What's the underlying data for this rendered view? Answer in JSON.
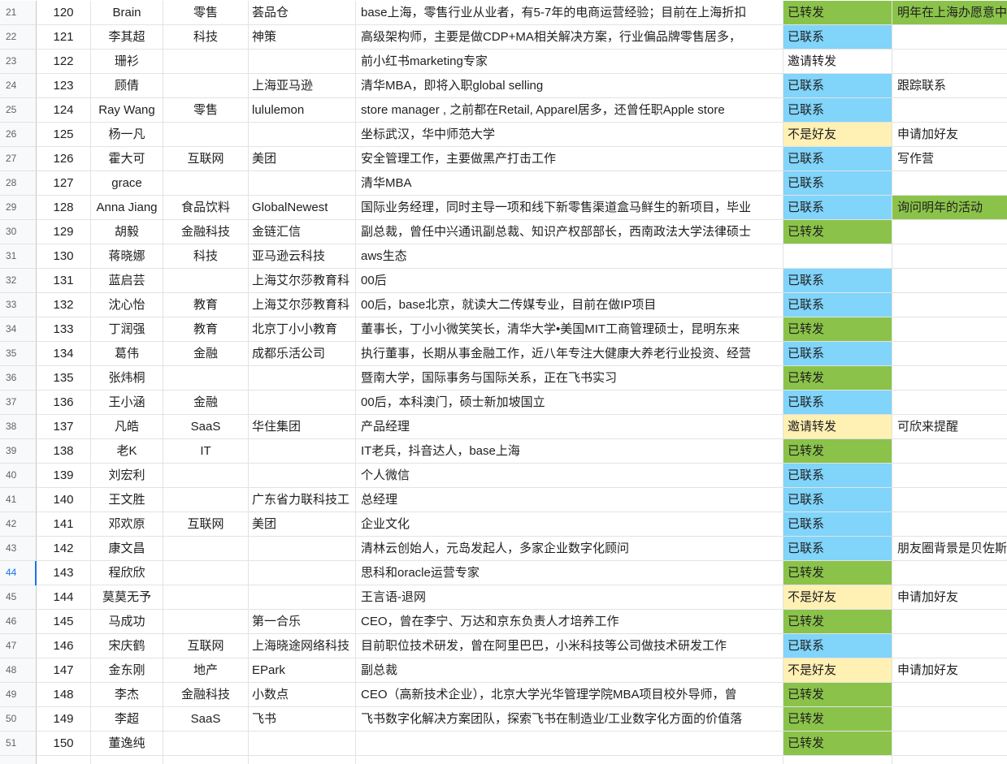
{
  "sheet": {
    "rows": [
      {
        "rn": "21",
        "id": "120",
        "name": "Brain",
        "industry": "零售",
        "company": "荟品仓",
        "desc": "base上海，零售行业从业者，有5-7年的电商运营经验；目前在上海折扣",
        "status": "已转发",
        "status_color": "green",
        "note": "明年在上海办愿意中",
        "note_color": "green"
      },
      {
        "rn": "22",
        "id": "121",
        "name": "李其超",
        "industry": "科技",
        "company": "神策",
        "desc": "高级架构师，主要是做CDP+MA相关解决方案，行业偏品牌零售居多，",
        "status": "已联系",
        "status_color": "blue",
        "note": "",
        "note_color": ""
      },
      {
        "rn": "23",
        "id": "122",
        "name": "珊衫",
        "industry": "",
        "company": "",
        "desc": "前小红书marketing专家",
        "status": "邀请转发",
        "status_color": "white",
        "note": "",
        "note_color": ""
      },
      {
        "rn": "24",
        "id": "123",
        "name": "顾倩",
        "industry": "",
        "company": "上海亚马逊",
        "desc": "清华MBA，即将入职global selling",
        "status": "已联系",
        "status_color": "blue",
        "note": "跟踪联系",
        "note_color": ""
      },
      {
        "rn": "25",
        "id": "124",
        "name": "Ray Wang",
        "industry": "零售",
        "company": "lululemon",
        "desc": "store manager , 之前都在Retail, Apparel居多，还曾任职Apple store",
        "status": "已联系",
        "status_color": "blue",
        "note": "",
        "note_color": ""
      },
      {
        "rn": "26",
        "id": "125",
        "name": "杨一凡",
        "industry": "",
        "company": "",
        "desc": "坐标武汉，华中师范大学",
        "status": "不是好友",
        "status_color": "yellow",
        "note": "申请加好友",
        "note_color": ""
      },
      {
        "rn": "27",
        "id": "126",
        "name": "霍大可",
        "industry": "互联网",
        "company": "美团",
        "desc": "安全管理工作，主要做黑产打击工作",
        "status": "已联系",
        "status_color": "blue",
        "note": "写作营",
        "note_color": ""
      },
      {
        "rn": "28",
        "id": "127",
        "name": "grace",
        "industry": "",
        "company": "",
        "desc": "清华MBA",
        "status": "已联系",
        "status_color": "blue",
        "note": "",
        "note_color": ""
      },
      {
        "rn": "29",
        "id": "128",
        "name": "Anna Jiang",
        "industry": "食品饮料",
        "company": "GlobalNewest",
        "desc": "国际业务经理，同时主导一项和线下新零售渠道盒马鲜生的新项目，毕业",
        "status": "已联系",
        "status_color": "blue",
        "note": "询问明年的活动",
        "note_color": "green"
      },
      {
        "rn": "30",
        "id": "129",
        "name": "胡毅",
        "industry": "金融科技",
        "company": "金链汇信",
        "desc": "副总裁，曾任中兴通讯副总裁、知识产权部部长，西南政法大学法律硕士",
        "status": "已转发",
        "status_color": "green",
        "note": "",
        "note_color": ""
      },
      {
        "rn": "31",
        "id": "130",
        "name": "蒋晓娜",
        "industry": "科技",
        "company": "亚马逊云科技",
        "desc": "aws生态",
        "status": "",
        "status_color": "white",
        "note": "",
        "note_color": ""
      },
      {
        "rn": "32",
        "id": "131",
        "name": "蓝启芸",
        "industry": "",
        "company": "上海艾尔莎教育科",
        "desc": "00后",
        "status": "已联系",
        "status_color": "blue",
        "note": "",
        "note_color": ""
      },
      {
        "rn": "33",
        "id": "132",
        "name": "沈心怡",
        "industry": "教育",
        "company": "上海艾尔莎教育科",
        "desc": "00后，base北京，就读大二传媒专业，目前在做IP项目",
        "status": "已联系",
        "status_color": "blue",
        "note": "",
        "note_color": ""
      },
      {
        "rn": "34",
        "id": "133",
        "name": "丁润强",
        "industry": "教育",
        "company": "北京丁小小教育",
        "desc": "董事长，丁小小微笑笑长，清华大学•美国MIT工商管理硕士，昆明东来",
        "status": "已转发",
        "status_color": "green",
        "note": "",
        "note_color": ""
      },
      {
        "rn": "35",
        "id": "134",
        "name": "葛伟",
        "industry": "金融",
        "company": "成都乐活公司",
        "desc": "执行董事，长期从事金融工作，近八年专注大健康大养老行业投资、经营",
        "status": "已联系",
        "status_color": "blue",
        "note": "",
        "note_color": ""
      },
      {
        "rn": "36",
        "id": "135",
        "name": "张炜桐",
        "industry": "",
        "company": "",
        "desc": "暨南大学，国际事务与国际关系，正在飞书实习",
        "status": "已转发",
        "status_color": "green",
        "note": "",
        "note_color": ""
      },
      {
        "rn": "37",
        "id": "136",
        "name": "王小涵",
        "industry": "金融",
        "company": "",
        "desc": "00后，本科澳门，硕士新加坡国立",
        "status": "已联系",
        "status_color": "blue",
        "note": "",
        "note_color": ""
      },
      {
        "rn": "38",
        "id": "137",
        "name": "凡皓",
        "industry": "SaaS",
        "company": "华住集团",
        "desc": "产品经理",
        "status": "邀请转发",
        "status_color": "yellow",
        "note": "可欣来提醒",
        "note_color": ""
      },
      {
        "rn": "39",
        "id": "138",
        "name": "老K",
        "industry": "IT",
        "company": "",
        "desc": "IT老兵，抖音达人，base上海",
        "status": "已转发",
        "status_color": "green",
        "note": "",
        "note_color": ""
      },
      {
        "rn": "40",
        "id": "139",
        "name": "刘宏利",
        "industry": "",
        "company": "",
        "desc": "个人微信",
        "status": "已联系",
        "status_color": "blue",
        "note": "",
        "note_color": ""
      },
      {
        "rn": "41",
        "id": "140",
        "name": "王文胜",
        "industry": "",
        "company": "广东省力联科技工",
        "desc": "总经理",
        "status": "已联系",
        "status_color": "blue",
        "note": "",
        "note_color": ""
      },
      {
        "rn": "42",
        "id": "141",
        "name": "邓欢原",
        "industry": "互联网",
        "company": "美团",
        "desc": "企业文化",
        "status": "已联系",
        "status_color": "blue",
        "note": "",
        "note_color": ""
      },
      {
        "rn": "43",
        "id": "142",
        "name": "康文昌",
        "industry": "",
        "company": "",
        "desc": "清林云创始人，元岛发起人，多家企业数字化顾问",
        "status": "已联系",
        "status_color": "blue",
        "note": "朋友圈背景是贝佐斯",
        "note_color": ""
      },
      {
        "rn": "44",
        "id": "143",
        "name": "程欣欣",
        "industry": "",
        "company": "",
        "desc": "思科和oracle运营专家",
        "status": "已转发",
        "status_color": "green",
        "note": "",
        "note_color": ""
      },
      {
        "rn": "45",
        "id": "144",
        "name": "莫莫无予",
        "industry": "",
        "company": "",
        "desc": "王言语-退网",
        "status": "不是好友",
        "status_color": "yellow",
        "note": "申请加好友",
        "note_color": ""
      },
      {
        "rn": "46",
        "id": "145",
        "name": "马成功",
        "industry": "",
        "company": "第一合乐",
        "desc": "CEO，曾在李宁、万达和京东负责人才培养工作",
        "status": "已转发",
        "status_color": "green",
        "note": "",
        "note_color": ""
      },
      {
        "rn": "47",
        "id": "146",
        "name": "宋庆鹤",
        "industry": "互联网",
        "company": "上海晓途网络科技",
        "desc": "目前职位技术研发，曾在阿里巴巴，小米科技等公司做技术研发工作",
        "status": "已联系",
        "status_color": "blue",
        "note": "",
        "note_color": ""
      },
      {
        "rn": "48",
        "id": "147",
        "name": "金东刚",
        "industry": "地产",
        "company": "EPark",
        "desc": "副总裁",
        "status": "不是好友",
        "status_color": "yellow",
        "note": "申请加好友",
        "note_color": ""
      },
      {
        "rn": "49",
        "id": "148",
        "name": "李杰",
        "industry": "金融科技",
        "company": "小数点",
        "desc": "CEO（高新技术企业），北京大学光华管理学院MBA项目校外导师，曾",
        "status": "已转发",
        "status_color": "green",
        "note": "",
        "note_color": ""
      },
      {
        "rn": "50",
        "id": "149",
        "name": "李超",
        "industry": "SaaS",
        "company": "飞书",
        "desc": "飞书数字化解决方案团队，探索飞书在制造业/工业数字化方面的价值落",
        "status": "已转发",
        "status_color": "green",
        "note": "",
        "note_color": ""
      },
      {
        "rn": "51",
        "id": "150",
        "name": "董逸纯",
        "industry": "",
        "company": "",
        "desc": "",
        "status": "已转发",
        "status_color": "green",
        "note": "",
        "note_color": ""
      }
    ],
    "selected_row": "44"
  }
}
